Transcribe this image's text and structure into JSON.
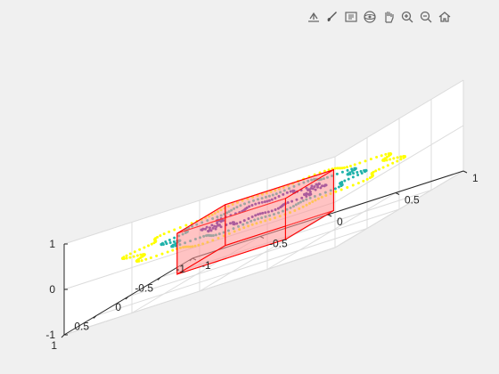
{
  "toolbar": {
    "tools": [
      "export-icon",
      "brush-icon",
      "data-tips-icon",
      "rotate-3d-icon",
      "pan-icon",
      "zoom-in-icon",
      "zoom-out-icon",
      "home-icon"
    ]
  },
  "chart_data": {
    "type": "scatter3",
    "grid": true,
    "x_ticks": [
      "-1",
      "-0.5",
      "0",
      "0.5",
      "1"
    ],
    "y_ticks": [
      "-1",
      "-0.5",
      "0",
      "0.5",
      "1"
    ],
    "z_ticks": [
      "-1",
      "0",
      "1"
    ],
    "xlim": [
      -1,
      1
    ],
    "ylim": [
      -1,
      1
    ],
    "zlim": [
      -1,
      1
    ],
    "series": [
      {
        "shape": "rose curve, outer",
        "r_base": 0.88,
        "r_amp": 0.07,
        "petals": 10,
        "z": 0,
        "color": "#ffff00",
        "points": 180
      },
      {
        "shape": "rose curve, middle",
        "r_base": 0.63,
        "r_amp": 0.06,
        "petals": 10,
        "z": 0,
        "color": "#20b2aa",
        "points": 150
      },
      {
        "shape": "rose curve, inner",
        "r_base": 0.36,
        "r_amp": 0.06,
        "petals": 10,
        "z": 0,
        "color": "#3a0ca3",
        "points": 120
      }
    ],
    "box": {
      "x": [
        -0.35,
        0.4
      ],
      "y": [
        -0.45,
        0.35
      ],
      "z": [
        -0.7,
        0.2
      ],
      "edge_color": "#ff0000",
      "face_color": "#ff9999"
    }
  }
}
